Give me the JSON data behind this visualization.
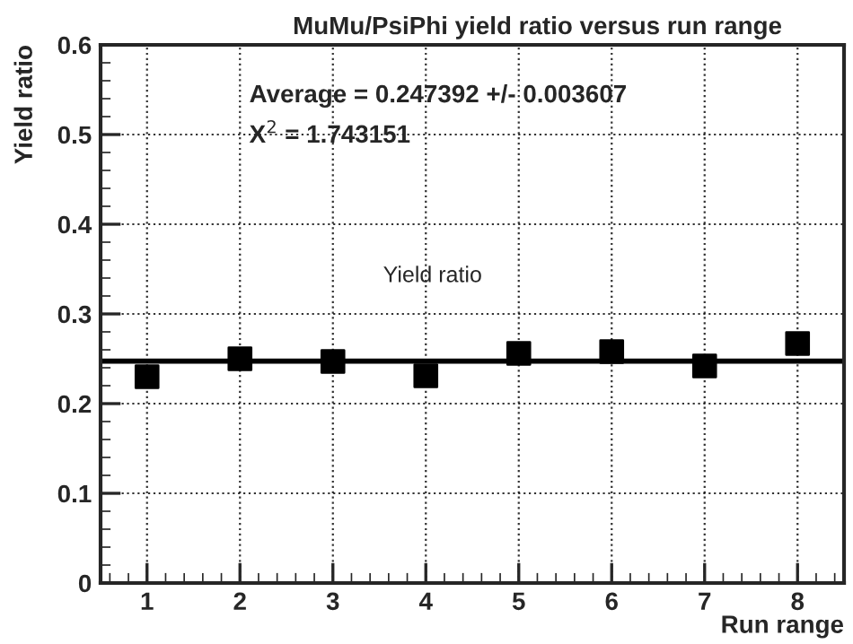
{
  "chart_data": {
    "type": "scatter",
    "title": "MuMu/PsiPhi yield ratio versus run range",
    "xlabel": "Run range",
    "ylabel": "Yield ratio",
    "x": [
      1,
      2,
      3,
      4,
      5,
      6,
      7,
      8
    ],
    "series": [
      {
        "color": "#000000",
        "values": [
          0.23,
          0.25,
          0.247,
          0.231,
          0.256,
          0.258,
          0.242,
          0.267
        ]
      }
    ],
    "marker": "square",
    "ref_lines": [
      {
        "axis": "y",
        "value": 0.247392,
        "color": "#000000",
        "line_style": "solid"
      }
    ],
    "annotations": [
      "Average = 0.247392 +/- 0.003607",
      "X$^{2}$ = 1.743151",
      "Yield ratio"
    ],
    "xlim": [
      0.5,
      8.5
    ],
    "xticks": [
      1,
      2,
      3,
      4,
      5,
      6,
      7,
      8
    ],
    "ylim": [
      0,
      0.6
    ],
    "yticks": [
      0,
      0.1,
      0.2,
      0.3,
      0.4,
      0.5,
      0.6
    ],
    "grid": true
  }
}
